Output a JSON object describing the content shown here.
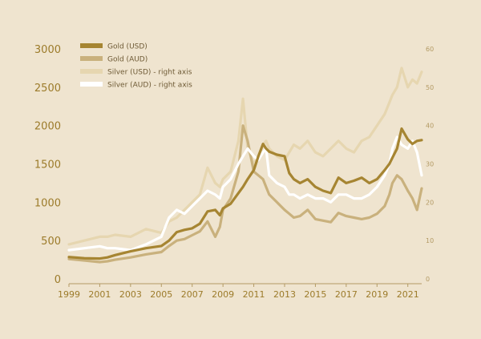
{
  "colors": {
    "background": "#efe4cf",
    "gold_usd": "#a68532",
    "gold_aud": "#c9b17d",
    "silver_usd": "#e6d6b0",
    "silver_aud": "#ffffff",
    "axis_text_left": "#9c7b2a",
    "axis_text_right": "#b39a64",
    "axis_line": "#b39a64"
  },
  "chart_data": {
    "type": "line",
    "title": "",
    "xlabel": "",
    "ylabel": "",
    "x_ticks": [
      "1999",
      "2001",
      "2003",
      "2005",
      "2007",
      "2009",
      "2011",
      "2013",
      "2015",
      "2017",
      "2019",
      "2021"
    ],
    "y_left_ticks": [
      "0",
      "500",
      "1000",
      "1500",
      "2000",
      "2500",
      "3000"
    ],
    "y_right_ticks": [
      "0",
      "10",
      "20",
      "30",
      "40",
      "50",
      "60"
    ],
    "xlim": [
      1999.0,
      2021.9
    ],
    "ylim_left": [
      0,
      3000
    ],
    "ylim_right": [
      0,
      60
    ],
    "grid": false,
    "legend_position": "top-left",
    "series": [
      {
        "name": "Gold (USD)",
        "axis": "left",
        "x": [
          1999.0,
          2000.0,
          2001.0,
          2001.5,
          2002.0,
          2003.0,
          2004.0,
          2005.0,
          2005.5,
          2006.0,
          2006.5,
          2007.0,
          2007.5,
          2008.0,
          2008.5,
          2008.8,
          2009.0,
          2009.5,
          2010.0,
          2010.3,
          2010.6,
          2011.0,
          2011.3,
          2011.6,
          2011.8,
          2012.0,
          2012.5,
          2013.0,
          2013.3,
          2013.6,
          2014.0,
          2014.5,
          2015.0,
          2015.5,
          2016.0,
          2016.5,
          2017.0,
          2017.5,
          2018.0,
          2018.5,
          2019.0,
          2019.5,
          2019.8,
          2020.0,
          2020.3,
          2020.6,
          2021.0,
          2021.3,
          2021.6,
          2021.9
        ],
        "y": [
          285,
          270,
          265,
          280,
          310,
          360,
          400,
          430,
          500,
          610,
          640,
          660,
          720,
          880,
          900,
          830,
          920,
          980,
          1120,
          1200,
          1300,
          1420,
          1600,
          1760,
          1700,
          1660,
          1620,
          1600,
          1380,
          1300,
          1250,
          1300,
          1200,
          1150,
          1120,
          1320,
          1250,
          1280,
          1320,
          1250,
          1300,
          1420,
          1500,
          1580,
          1700,
          1960,
          1820,
          1760,
          1800,
          1810
        ]
      },
      {
        "name": "Gold (AUD)",
        "axis": "left",
        "x": [
          1999.0,
          2000.0,
          2001.0,
          2001.5,
          2002.0,
          2003.0,
          2004.0,
          2005.0,
          2005.5,
          2006.0,
          2006.5,
          2007.0,
          2007.5,
          2008.0,
          2008.5,
          2008.8,
          2009.0,
          2009.5,
          2010.0,
          2010.3,
          2010.6,
          2011.0,
          2011.3,
          2011.6,
          2011.8,
          2012.0,
          2012.5,
          2013.0,
          2013.3,
          2013.6,
          2014.0,
          2014.5,
          2015.0,
          2015.5,
          2016.0,
          2016.5,
          2017.0,
          2017.5,
          2018.0,
          2018.5,
          2019.0,
          2019.5,
          2019.8,
          2020.0,
          2020.3,
          2020.6,
          2021.0,
          2021.3,
          2021.6,
          2021.9
        ],
        "y": [
          260,
          240,
          220,
          230,
          250,
          280,
          320,
          350,
          430,
          500,
          520,
          570,
          620,
          750,
          550,
          680,
          900,
          1050,
          1400,
          2000,
          1800,
          1400,
          1350,
          1300,
          1200,
          1100,
          1000,
          900,
          850,
          800,
          820,
          900,
          780,
          760,
          740,
          860,
          820,
          800,
          780,
          800,
          850,
          950,
          1100,
          1250,
          1350,
          1300,
          1150,
          1050,
          900,
          1180
        ]
      },
      {
        "name": "Silver (USD) - right axis",
        "axis": "right",
        "x": [
          1999.0,
          2000.0,
          2001.0,
          2001.5,
          2002.0,
          2003.0,
          2004.0,
          2005.0,
          2005.5,
          2006.0,
          2006.5,
          2007.0,
          2007.5,
          2008.0,
          2008.5,
          2008.8,
          2009.0,
          2009.5,
          2010.0,
          2010.3,
          2010.6,
          2011.0,
          2011.3,
          2011.6,
          2011.8,
          2012.0,
          2012.5,
          2013.0,
          2013.3,
          2013.6,
          2014.0,
          2014.5,
          2015.0,
          2015.5,
          2016.0,
          2016.5,
          2017.0,
          2017.5,
          2018.0,
          2018.5,
          2019.0,
          2019.5,
          2019.8,
          2020.0,
          2020.3,
          2020.6,
          2021.0,
          2021.3,
          2021.6,
          2021.9
        ],
        "y": [
          9,
          10,
          11,
          11,
          11.5,
          11,
          13,
          12,
          15,
          16,
          18,
          20,
          22,
          29,
          25,
          24,
          26,
          28,
          36,
          47,
          34,
          30,
          32,
          35,
          36,
          34,
          32,
          31,
          33,
          35,
          34,
          36,
          33,
          32,
          34,
          36,
          34,
          33,
          36,
          37,
          40,
          43,
          46,
          48,
          50,
          55,
          50,
          52,
          51,
          54
        ]
      },
      {
        "name": "Silver (AUD) - right axis",
        "axis": "right",
        "x": [
          1999.0,
          2000.0,
          2001.0,
          2001.5,
          2002.0,
          2003.0,
          2004.0,
          2005.0,
          2005.5,
          2006.0,
          2006.5,
          2007.0,
          2007.5,
          2008.0,
          2008.5,
          2008.8,
          2009.0,
          2009.5,
          2010.0,
          2010.3,
          2010.6,
          2011.0,
          2011.3,
          2011.6,
          2011.8,
          2012.0,
          2012.5,
          2013.0,
          2013.3,
          2013.6,
          2014.0,
          2014.5,
          2015.0,
          2015.5,
          2016.0,
          2016.5,
          2017.0,
          2017.5,
          2018.0,
          2018.5,
          2019.0,
          2019.5,
          2019.8,
          2020.0,
          2020.3,
          2020.6,
          2021.0,
          2021.3,
          2021.6,
          2021.9
        ],
        "y": [
          7.5,
          8,
          8.5,
          8,
          8,
          7.5,
          9,
          11,
          16,
          18,
          17,
          19,
          21,
          23,
          22,
          21,
          24,
          26,
          30,
          32,
          34,
          32,
          31,
          33,
          34,
          27,
          25,
          24,
          22,
          22,
          21,
          22,
          21,
          21,
          20,
          22,
          22,
          21,
          21,
          22,
          24,
          27,
          30,
          34,
          37,
          35,
          34,
          36,
          33,
          27
        ]
      }
    ]
  }
}
